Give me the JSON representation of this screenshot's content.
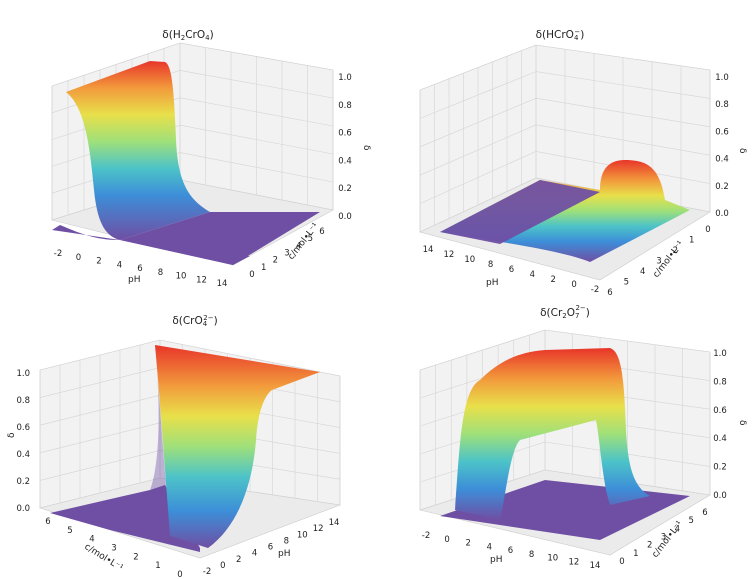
{
  "chart_data": [
    {
      "type": "surface",
      "title_parts": [
        "δ(H",
        "2",
        "CrO",
        "4",
        ")"
      ],
      "xlabel": "pH",
      "ylabel": "c/mol•L⁻¹",
      "zlabel": "δ",
      "x_ticks": [
        "-2",
        "0",
        "2",
        "4",
        "6",
        "8",
        "10",
        "12",
        "14"
      ],
      "y_ticks": [
        "0",
        "1",
        "2",
        "3",
        "4",
        "5",
        "6"
      ],
      "z_ticks": [
        "0.0",
        "0.2",
        "0.4",
        "0.6",
        "0.8",
        "1.0"
      ],
      "xlim": [
        -2,
        14
      ],
      "ylim": [
        0,
        6
      ],
      "zlim": [
        0,
        1
      ],
      "surface": {
        "species": "H2CrO4",
        "peak": 1.0,
        "transition_pH": 0.8
      }
    },
    {
      "type": "surface",
      "title_parts": [
        "δ(HCrO",
        "4",
        "−",
        ")"
      ],
      "xlabel": "pH",
      "ylabel": "c/mol•L⁻¹",
      "zlabel": "δ",
      "x_ticks": [
        "14",
        "12",
        "10",
        "8",
        "6",
        "4",
        "2",
        "0",
        "-2"
      ],
      "y_ticks": [
        "0",
        "1",
        "2",
        "3",
        "4",
        "5",
        "6"
      ],
      "z_ticks": [
        "0.0",
        "0.2",
        "0.4",
        "0.6",
        "0.8",
        "1.0"
      ],
      "xlim": [
        -2,
        14
      ],
      "ylim": [
        0,
        6
      ],
      "zlim": [
        0,
        1
      ],
      "surface": {
        "species": "HCrO4-",
        "peak": 0.3,
        "peak_pH": 0
      }
    },
    {
      "type": "surface",
      "title_parts": [
        "δ(CrO",
        "4",
        "2−",
        ")"
      ],
      "xlabel": "pH",
      "ylabel": "c/mol•L⁻¹",
      "zlabel": "δ",
      "x_ticks": [
        "-2",
        "0",
        "2",
        "4",
        "6",
        "8",
        "10",
        "12",
        "14"
      ],
      "y_ticks": [
        "6",
        "5",
        "4",
        "3",
        "2",
        "1",
        "0"
      ],
      "z_ticks": [
        "0.0",
        "0.2",
        "0.4",
        "0.6",
        "0.8",
        "1.0"
      ],
      "xlim": [
        -2,
        14
      ],
      "ylim": [
        0,
        6
      ],
      "zlim": [
        0,
        1
      ],
      "surface": {
        "species": "CrO4 2-",
        "peak": 1.0,
        "transition_pH": 6.5
      }
    },
    {
      "type": "surface",
      "title_parts": [
        "δ(Cr",
        "2",
        "O",
        "7",
        "2−",
        ")"
      ],
      "xlabel": "pH",
      "ylabel": "c/mol•L⁻¹",
      "zlabel": "δ",
      "x_ticks": [
        "-2",
        "0",
        "2",
        "4",
        "6",
        "8",
        "10",
        "12",
        "14"
      ],
      "y_ticks": [
        "0",
        "1",
        "2",
        "3",
        "4",
        "5",
        "6"
      ],
      "z_ticks": [
        "0.0",
        "0.2",
        "0.4",
        "0.6",
        "0.8",
        "1.0"
      ],
      "xlim": [
        -2,
        14
      ],
      "ylim": [
        0,
        6
      ],
      "zlim": [
        0,
        1
      ],
      "surface": {
        "species": "Cr2O7 2-",
        "peak": 1.0,
        "rise_pH": 0.8,
        "fall_pH": 6.5
      }
    }
  ]
}
